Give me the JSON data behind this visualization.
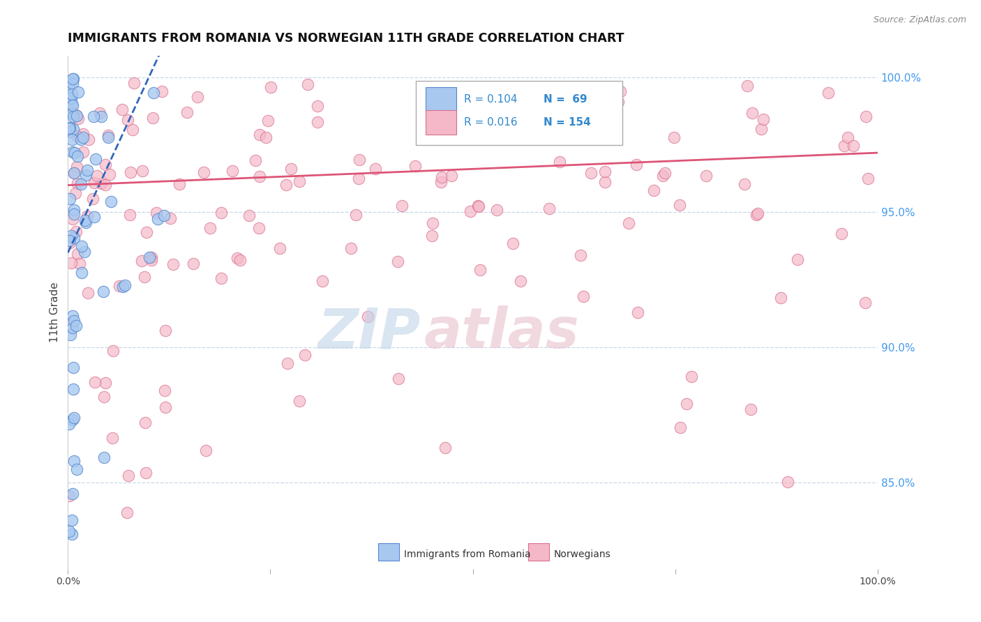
{
  "title": "IMMIGRANTS FROM ROMANIA VS NORWEGIAN 11TH GRADE CORRELATION CHART",
  "source": "Source: ZipAtlas.com",
  "ylabel": "11th Grade",
  "ylabel_right_ticks": [
    85.0,
    90.0,
    95.0,
    100.0
  ],
  "x_min": 0.0,
  "x_max": 1.0,
  "y_min": 0.818,
  "y_max": 1.008,
  "legend_blue_R": "R = 0.104",
  "legend_blue_N": "N =  69",
  "legend_pink_R": "R = 0.016",
  "legend_pink_N": "N = 154",
  "blue_color": "#a8c8f0",
  "pink_color": "#f5b8c8",
  "blue_edge_color": "#5588cc",
  "pink_edge_color": "#d87090",
  "blue_line_color": "#3366bb",
  "pink_line_color": "#dd5577",
  "legend_R_color": "#3388cc",
  "legend_N_color": "#3388cc",
  "right_axis_color": "#4499ee",
  "grid_color": "#c8d8e8",
  "watermark_zip_color": "#c0d4e8",
  "watermark_atlas_color": "#e8c0cc"
}
